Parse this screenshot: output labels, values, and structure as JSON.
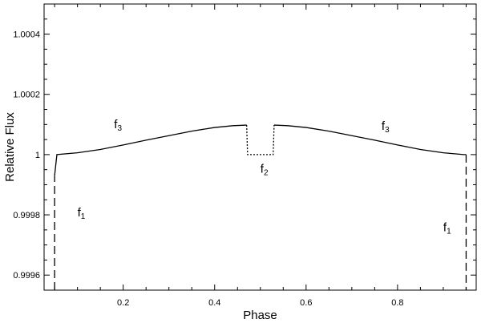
{
  "chart_data": {
    "type": "line",
    "title": "",
    "xlabel": "Phase",
    "ylabel": "Relative Flux",
    "xlim": [
      0.027,
      0.972
    ],
    "ylim": [
      0.99955,
      1.0005
    ],
    "x_ticks": [
      0.2,
      0.4,
      0.6,
      0.8
    ],
    "x_tick_labels": [
      "0.2",
      "0.4",
      "0.6",
      "0.8"
    ],
    "y_ticks": [
      0.9996,
      0.9998,
      1.0,
      1.0002,
      1.0004
    ],
    "y_tick_labels": [
      "0.9996",
      "0.9998",
      "1",
      "1.0002",
      "1.0004"
    ],
    "grid": false,
    "legend": "none",
    "series": [
      {
        "style": "dashed",
        "points": [
          [
            0.05,
            0.99955
          ],
          [
            0.05,
            0.99993
          ]
        ]
      },
      {
        "style": "solid",
        "points": [
          [
            0.05,
            0.99993
          ],
          [
            0.055,
            1.0
          ],
          [
            0.1,
            1.000006
          ],
          [
            0.15,
            1.000017
          ],
          [
            0.2,
            1.000032
          ],
          [
            0.25,
            1.000048
          ],
          [
            0.3,
            1.000063
          ],
          [
            0.35,
            1.000078
          ],
          [
            0.4,
            1.00009
          ],
          [
            0.44,
            1.000096
          ],
          [
            0.47,
            1.000098
          ]
        ]
      },
      {
        "style": "dotted",
        "points": [
          [
            0.47,
            1.000098
          ],
          [
            0.472,
            1.0
          ],
          [
            0.528,
            1.0
          ],
          [
            0.53,
            1.000098
          ]
        ]
      },
      {
        "style": "solid",
        "points": [
          [
            0.53,
            1.000098
          ],
          [
            0.56,
            1.000096
          ],
          [
            0.6,
            1.00009
          ],
          [
            0.65,
            1.000078
          ],
          [
            0.7,
            1.000063
          ],
          [
            0.75,
            1.000048
          ],
          [
            0.8,
            1.000032
          ],
          [
            0.85,
            1.000017
          ],
          [
            0.9,
            1.000006
          ],
          [
            0.945,
            1.0
          ],
          [
            0.95,
            1.0
          ]
        ]
      },
      {
        "style": "dashed",
        "points": [
          [
            0.95,
            1.0
          ],
          [
            0.95,
            0.99955
          ]
        ]
      }
    ],
    "annotations": [
      {
        "base": "f",
        "sub": "3",
        "x": 0.18,
        "y": 1.000087
      },
      {
        "base": "f",
        "sub": "3",
        "x": 0.765,
        "y": 1.000082
      },
      {
        "base": "f",
        "sub": "2",
        "x": 0.5,
        "y": 0.99994
      },
      {
        "base": "f",
        "sub": "1",
        "x": 0.1,
        "y": 0.999795
      },
      {
        "base": "f",
        "sub": "1",
        "x": 0.9,
        "y": 0.999745
      }
    ]
  }
}
